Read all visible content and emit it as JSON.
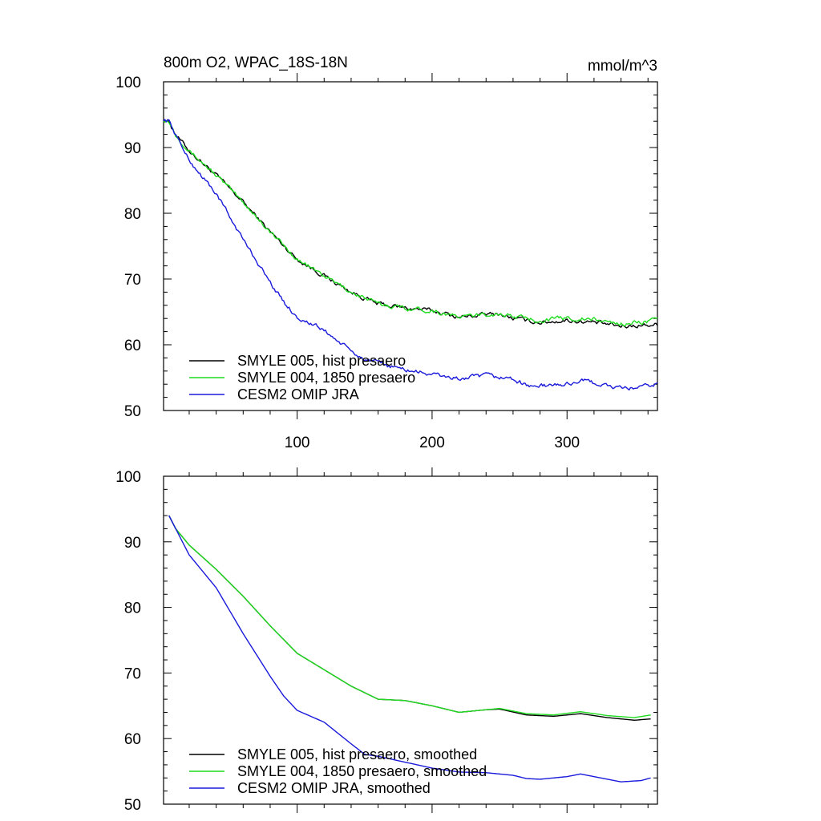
{
  "colors": {
    "hist": "#000000",
    "pi": "#1fdc1f",
    "omip": "#1a1adb",
    "axes": "#000000",
    "background": "#ffffff"
  },
  "chart_data": [
    {
      "type": "line",
      "title": "800m O2, WPAC_18S-18N",
      "units": "mmol/m^3",
      "xlim": [
        1,
        367
      ],
      "ylim": [
        50,
        100
      ],
      "x_ticks": [
        100,
        200,
        300
      ],
      "x_tick_labels": [
        "100",
        "200",
        "300"
      ],
      "y_ticks": [
        50,
        60,
        70,
        80,
        90,
        100
      ],
      "y_tick_labels": [
        "50",
        "60",
        "70",
        "80",
        "90",
        "100"
      ],
      "smoothed": false,
      "x_start": 1,
      "x_end": 367,
      "series": [
        {
          "name": "SMYLE 005, hist presaero",
          "color": "#000000",
          "knots": [
            [
              1,
              94.3
            ],
            [
              5,
              94.0
            ],
            [
              10,
              92.0
            ],
            [
              20,
              89.5
            ],
            [
              40,
              85.8
            ],
            [
              60,
              81.7
            ],
            [
              80,
              77.2
            ],
            [
              100,
              73.0
            ],
            [
              120,
              70.5
            ],
            [
              140,
              68.0
            ],
            [
              160,
              66.2
            ],
            [
              180,
              65.6
            ],
            [
              200,
              65.2
            ],
            [
              220,
              64.2
            ],
            [
              240,
              64.6
            ],
            [
              250,
              64.7
            ],
            [
              260,
              64.0
            ],
            [
              280,
              63.4
            ],
            [
              300,
              63.7
            ],
            [
              320,
              63.4
            ],
            [
              340,
              62.8
            ],
            [
              367,
              63.1
            ]
          ]
        },
        {
          "name": "SMYLE 004, 1850 presaero",
          "color": "#1fdc1f",
          "knots": [
            [
              1,
              94.3
            ],
            [
              5,
              94.0
            ],
            [
              10,
              92.0
            ],
            [
              20,
              89.5
            ],
            [
              40,
              85.8
            ],
            [
              60,
              81.7
            ],
            [
              80,
              77.2
            ],
            [
              100,
              73.0
            ],
            [
              120,
              70.5
            ],
            [
              140,
              68.0
            ],
            [
              160,
              66.2
            ],
            [
              180,
              65.6
            ],
            [
              200,
              65.2
            ],
            [
              220,
              64.2
            ],
            [
              240,
              64.6
            ],
            [
              250,
              64.7
            ],
            [
              260,
              64.3
            ],
            [
              280,
              63.7
            ],
            [
              300,
              64.1
            ],
            [
              320,
              63.8
            ],
            [
              340,
              63.2
            ],
            [
              367,
              63.7
            ]
          ]
        },
        {
          "name": "CESM2 OMIP JRA",
          "color": "#1a1adb",
          "knots": [
            [
              1,
              94.3
            ],
            [
              5,
              94.0
            ],
            [
              10,
              92.0
            ],
            [
              20,
              88.0
            ],
            [
              40,
              83.0
            ],
            [
              60,
              76.0
            ],
            [
              80,
              69.5
            ],
            [
              90,
              66.5
            ],
            [
              100,
              64.2
            ],
            [
              120,
              62.2
            ],
            [
              140,
              59.0
            ],
            [
              150,
              57.7
            ],
            [
              160,
              57.2
            ],
            [
              180,
              56.2
            ],
            [
              200,
              55.5
            ],
            [
              220,
              54.8
            ],
            [
              240,
              55.3
            ],
            [
              260,
              54.8
            ],
            [
              270,
              53.8
            ],
            [
              280,
              53.7
            ],
            [
              300,
              54.0
            ],
            [
              310,
              54.6
            ],
            [
              320,
              54.2
            ],
            [
              340,
              53.3
            ],
            [
              355,
              53.5
            ],
            [
              367,
              54.0
            ]
          ]
        }
      ],
      "legend": [
        {
          "label": "SMYLE 005, hist presaero",
          "color": "#000000"
        },
        {
          "label": "SMYLE 004, 1850 presaero",
          "color": "#1fdc1f"
        },
        {
          "label": "CESM2 OMIP JRA",
          "color": "#1a1adb"
        }
      ],
      "legend_position": "bottom-left"
    },
    {
      "type": "line",
      "title": "",
      "units": "",
      "xlim": [
        1,
        367
      ],
      "ylim": [
        50,
        100
      ],
      "x_ticks": [
        100,
        200,
        300
      ],
      "x_tick_labels": [],
      "y_ticks": [
        50,
        60,
        70,
        80,
        90,
        100
      ],
      "y_tick_labels": [
        "50",
        "60",
        "70",
        "80",
        "90",
        "100"
      ],
      "smoothed": true,
      "x_start": 5,
      "x_end": 362,
      "series": [
        {
          "name": "SMYLE 005, hist presaero, smoothed",
          "color": "#000000",
          "knots": [
            [
              5,
              94.0
            ],
            [
              10,
              92.0
            ],
            [
              20,
              89.5
            ],
            [
              40,
              85.8
            ],
            [
              60,
              81.7
            ],
            [
              80,
              77.2
            ],
            [
              100,
              73.0
            ],
            [
              120,
              70.5
            ],
            [
              140,
              68.0
            ],
            [
              160,
              66.0
            ],
            [
              180,
              65.8
            ],
            [
              200,
              65.0
            ],
            [
              220,
              64.0
            ],
            [
              240,
              64.4
            ],
            [
              250,
              64.5
            ],
            [
              270,
              63.6
            ],
            [
              290,
              63.4
            ],
            [
              310,
              63.8
            ],
            [
              330,
              63.2
            ],
            [
              350,
              62.8
            ],
            [
              362,
              63.0
            ]
          ]
        },
        {
          "name": "SMYLE 004, 1850 presaero, smoothed",
          "color": "#1fdc1f",
          "knots": [
            [
              5,
              94.0
            ],
            [
              10,
              92.0
            ],
            [
              20,
              89.5
            ],
            [
              40,
              85.8
            ],
            [
              60,
              81.7
            ],
            [
              80,
              77.2
            ],
            [
              100,
              73.0
            ],
            [
              120,
              70.5
            ],
            [
              140,
              68.0
            ],
            [
              160,
              66.0
            ],
            [
              180,
              65.8
            ],
            [
              200,
              65.0
            ],
            [
              220,
              64.0
            ],
            [
              240,
              64.4
            ],
            [
              250,
              64.6
            ],
            [
              270,
              63.8
            ],
            [
              290,
              63.6
            ],
            [
              310,
              64.1
            ],
            [
              330,
              63.5
            ],
            [
              350,
              63.2
            ],
            [
              362,
              63.6
            ]
          ]
        },
        {
          "name": "CESM2 OMIP JRA, smoothed",
          "color": "#1a1adb",
          "knots": [
            [
              5,
              94.0
            ],
            [
              10,
              92.0
            ],
            [
              20,
              88.0
            ],
            [
              40,
              83.0
            ],
            [
              60,
              76.0
            ],
            [
              80,
              69.5
            ],
            [
              90,
              66.5
            ],
            [
              100,
              64.3
            ],
            [
              120,
              62.5
            ],
            [
              140,
              59.2
            ],
            [
              150,
              57.6
            ],
            [
              160,
              57.3
            ],
            [
              180,
              56.4
            ],
            [
              200,
              55.5
            ],
            [
              220,
              54.9
            ],
            [
              240,
              54.8
            ],
            [
              260,
              54.4
            ],
            [
              270,
              53.9
            ],
            [
              280,
              53.8
            ],
            [
              300,
              54.2
            ],
            [
              310,
              54.6
            ],
            [
              320,
              54.2
            ],
            [
              340,
              53.4
            ],
            [
              355,
              53.6
            ],
            [
              362,
              54.0
            ]
          ]
        }
      ],
      "legend": [
        {
          "label": "SMYLE 005, hist presaero, smoothed",
          "color": "#000000"
        },
        {
          "label": "SMYLE 004, 1850 presaero, smoothed",
          "color": "#1fdc1f"
        },
        {
          "label": "CESM2 OMIP JRA, smoothed",
          "color": "#1a1adb"
        }
      ],
      "legend_position": "bottom-left"
    }
  ]
}
